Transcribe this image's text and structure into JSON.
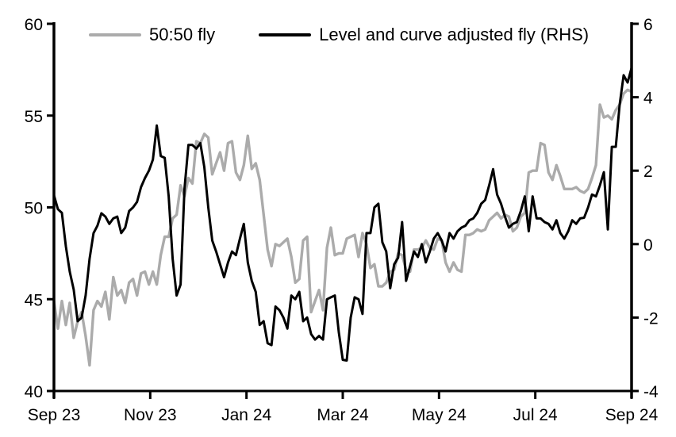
{
  "chart_data": {
    "type": "line",
    "title": "",
    "legend_position": "top",
    "grid": false,
    "x_axis": {
      "tick_labels": [
        "Sep 23",
        "Nov 23",
        "Jan 24",
        "Mar 24",
        "May 24",
        "Jul 24",
        "Sep 24"
      ]
    },
    "y_axis_left": {
      "tick_labels": [
        "60",
        "55",
        "50",
        "45",
        "40"
      ],
      "tick_values": [
        60,
        55,
        50,
        45,
        40
      ],
      "range": [
        40,
        60
      ]
    },
    "y_axis_right": {
      "tick_labels": [
        "6",
        "4",
        "2",
        "0",
        "-2",
        "-4"
      ],
      "tick_values": [
        6,
        4,
        2,
        0,
        -2,
        -4
      ],
      "range": [
        -4,
        6
      ]
    },
    "series": [
      {
        "name": "50:50 fly",
        "axis": "left",
        "color": "#ababab",
        "values": [
          44.9,
          43.4,
          44.9,
          43.6,
          44.8,
          42.9,
          43.8,
          44.3,
          43.0,
          41.4,
          44.4,
          44.9,
          44.6,
          45.4,
          43.9,
          46.2,
          45.2,
          45.5,
          44.8,
          45.9,
          46.1,
          45.2,
          46.4,
          46.5,
          45.8,
          46.5,
          45.8,
          47.4,
          48.4,
          48.4,
          49.4,
          49.6,
          51.2,
          50.6,
          51.6,
          51.3,
          53.6,
          53.5,
          54.0,
          53.8,
          51.8,
          52.4,
          53.0,
          52.0,
          53.5,
          53.6,
          51.9,
          51.5,
          52.3,
          53.9,
          52.1,
          52.4,
          51.5,
          49.6,
          47.7,
          46.8,
          48.0,
          47.9,
          48.1,
          48.3,
          47.3,
          45.9,
          46.1,
          48.2,
          48.4,
          44.3,
          44.9,
          45.5,
          44.4,
          47.8,
          48.9,
          47.4,
          47.5,
          47.5,
          48.3,
          48.4,
          48.5,
          47.3,
          48.6,
          48.0,
          46.7,
          46.9,
          45.7,
          45.7,
          45.9,
          46.5,
          46.6,
          47.5,
          47.4,
          46.6,
          46.5,
          47.7,
          47.7,
          47.8,
          48.2,
          47.8,
          47.7,
          48.3,
          48.2,
          47.0,
          46.5,
          47.0,
          46.6,
          46.5,
          48.5,
          48.5,
          48.6,
          48.8,
          48.7,
          48.8,
          49.3,
          49.5,
          49.7,
          49.4,
          49.6,
          49.5,
          48.7,
          48.9,
          49.5,
          49.7,
          51.9,
          52.0,
          52.0,
          53.5,
          53.4,
          51.9,
          51.5,
          52.3,
          51.7,
          51.0,
          51.0,
          51.0,
          51.1,
          50.9,
          50.8,
          51.0,
          51.6,
          52.3,
          55.6,
          54.9,
          55.0,
          54.8,
          55.3,
          55.6,
          56.2,
          56.4,
          56.3
        ]
      },
      {
        "name": "Level and curve adjusted fly (RHS)",
        "axis": "right",
        "color": "#000000",
        "values": [
          1.33,
          0.95,
          0.85,
          -0.06,
          -0.75,
          -1.24,
          -2.1,
          -2.0,
          -1.4,
          -0.4,
          0.3,
          0.5,
          0.84,
          0.75,
          0.55,
          0.7,
          0.75,
          0.3,
          0.45,
          0.9,
          1.0,
          1.15,
          1.55,
          1.8,
          2.0,
          2.3,
          3.23,
          2.4,
          2.35,
          1.3,
          -0.4,
          -1.4,
          -1.1,
          1.5,
          2.7,
          2.7,
          2.6,
          2.75,
          2.1,
          1.0,
          0.1,
          -0.2,
          -0.55,
          -0.9,
          -0.5,
          -0.2,
          -0.3,
          0.15,
          0.55,
          -0.5,
          -1.0,
          -1.3,
          -2.2,
          -2.1,
          -2.7,
          -2.75,
          -1.7,
          -1.8,
          -2.0,
          -2.3,
          -1.4,
          -1.5,
          -1.3,
          -2.1,
          -2.0,
          -2.45,
          -2.6,
          -2.5,
          -2.6,
          -1.5,
          -1.45,
          -1.4,
          -2.4,
          -3.15,
          -3.17,
          -2.0,
          -1.45,
          -1.5,
          -1.9,
          0.3,
          0.3,
          1.0,
          1.1,
          0.05,
          -0.2,
          -1.2,
          -0.55,
          -0.37,
          0.6,
          -1.0,
          -0.6,
          -0.2,
          -0.35,
          0.0,
          -0.5,
          -0.2,
          0.15,
          0.3,
          0.1,
          -0.2,
          0.3,
          0.15,
          0.35,
          0.45,
          0.5,
          0.65,
          0.7,
          0.85,
          1.1,
          1.2,
          1.6,
          2.04,
          1.35,
          1.1,
          0.75,
          0.45,
          0.55,
          0.6,
          0.9,
          1.3,
          0.35,
          1.3,
          0.7,
          0.7,
          0.6,
          0.55,
          0.4,
          0.65,
          0.3,
          0.15,
          0.35,
          0.65,
          0.55,
          0.7,
          0.72,
          1.0,
          1.35,
          1.3,
          1.6,
          1.96,
          0.4,
          2.65,
          2.65,
          3.8,
          4.6,
          4.4,
          4.8
        ]
      }
    ]
  },
  "colors": {
    "background": "#ffffff",
    "axis": "#000000",
    "tick_label": "#000000",
    "gray_series": "#ababab",
    "black_series": "#000000"
  }
}
